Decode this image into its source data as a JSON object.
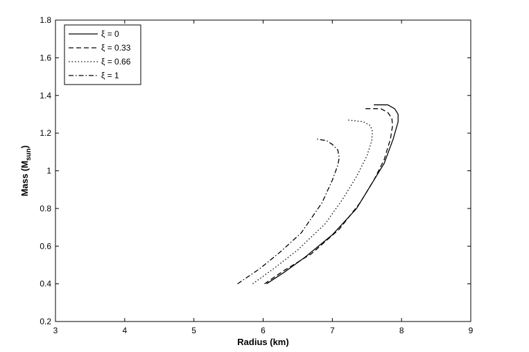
{
  "chart_data": {
    "type": "line",
    "title": "",
    "xlabel": "Radius (km)",
    "ylabel_main": "Mass (M",
    "ylabel_sub": "sun",
    "ylabel_end": ")",
    "xlim": [
      3,
      9
    ],
    "ylim": [
      0.2,
      1.8
    ],
    "xticks": [
      "3",
      "4",
      "5",
      "6",
      "7",
      "8",
      "9"
    ],
    "yticks": [
      "0.2",
      "0.4",
      "0.6",
      "0.8",
      "1",
      "1.2",
      "1.4",
      "1.6",
      "1.8"
    ],
    "grid": false,
    "legend_position": "top-left",
    "series": [
      {
        "name": "ξ = 0",
        "dash": "solid",
        "x": [
          6.05,
          6.3,
          6.6,
          7.0,
          7.35,
          7.55,
          7.75,
          7.88,
          7.95,
          7.95,
          7.9,
          7.8,
          7.6
        ],
        "y": [
          0.4,
          0.46,
          0.54,
          0.66,
          0.8,
          0.92,
          1.04,
          1.17,
          1.26,
          1.3,
          1.33,
          1.35,
          1.35
        ]
      },
      {
        "name": "ξ = 0.33",
        "dash": "dashed",
        "x": [
          6.02,
          6.3,
          6.7,
          7.1,
          7.4,
          7.6,
          7.75,
          7.84,
          7.87,
          7.86,
          7.8,
          7.7,
          7.45
        ],
        "y": [
          0.4,
          0.47,
          0.56,
          0.69,
          0.83,
          0.95,
          1.06,
          1.17,
          1.24,
          1.28,
          1.31,
          1.33,
          1.33
        ]
      },
      {
        "name": "ξ = 0.66",
        "dash": "dotted",
        "x": [
          5.85,
          6.15,
          6.5,
          6.9,
          7.15,
          7.35,
          7.5,
          7.57,
          7.58,
          7.55,
          7.45,
          7.22
        ],
        "y": [
          0.4,
          0.48,
          0.58,
          0.72,
          0.85,
          0.97,
          1.08,
          1.16,
          1.21,
          1.24,
          1.26,
          1.27
        ]
      },
      {
        "name": "ξ = 1",
        "dash": "dashdot",
        "x": [
          5.63,
          5.95,
          6.25,
          6.55,
          6.85,
          7.0,
          7.08,
          7.1,
          7.08,
          7.0,
          6.92,
          6.75
        ],
        "y": [
          0.4,
          0.48,
          0.57,
          0.67,
          0.83,
          0.95,
          1.03,
          1.07,
          1.11,
          1.14,
          1.16,
          1.17
        ]
      }
    ]
  }
}
